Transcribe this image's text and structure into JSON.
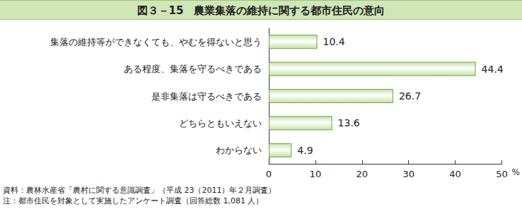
{
  "chart_data": {
    "type": "bar",
    "orientation": "horizontal",
    "title": "図３－15　農業集落の維持に関する都市住民の意向",
    "categories": [
      "集落の維持等ができなくても、やむを得ないと思う",
      "ある程度、集落を守るべきである",
      "是非集落は守るべきである",
      "どちらともいえない",
      "わからない"
    ],
    "values": [
      10.4,
      44.4,
      26.7,
      13.6,
      4.9
    ],
    "color": "#c4e3a4",
    "xlabel": "%",
    "xlim": [
      0,
      50
    ],
    "xticks": [
      0,
      10,
      20,
      30,
      40,
      50
    ],
    "grid": false,
    "data_labels": true,
    "annotations": [
      "資料：農林水産省「農村に関する意識調査」（平成 23（2011）年２月調査）",
      "注：都市住民を対象として実施したアンケート調査（回答総数 1,081 人）"
    ]
  }
}
